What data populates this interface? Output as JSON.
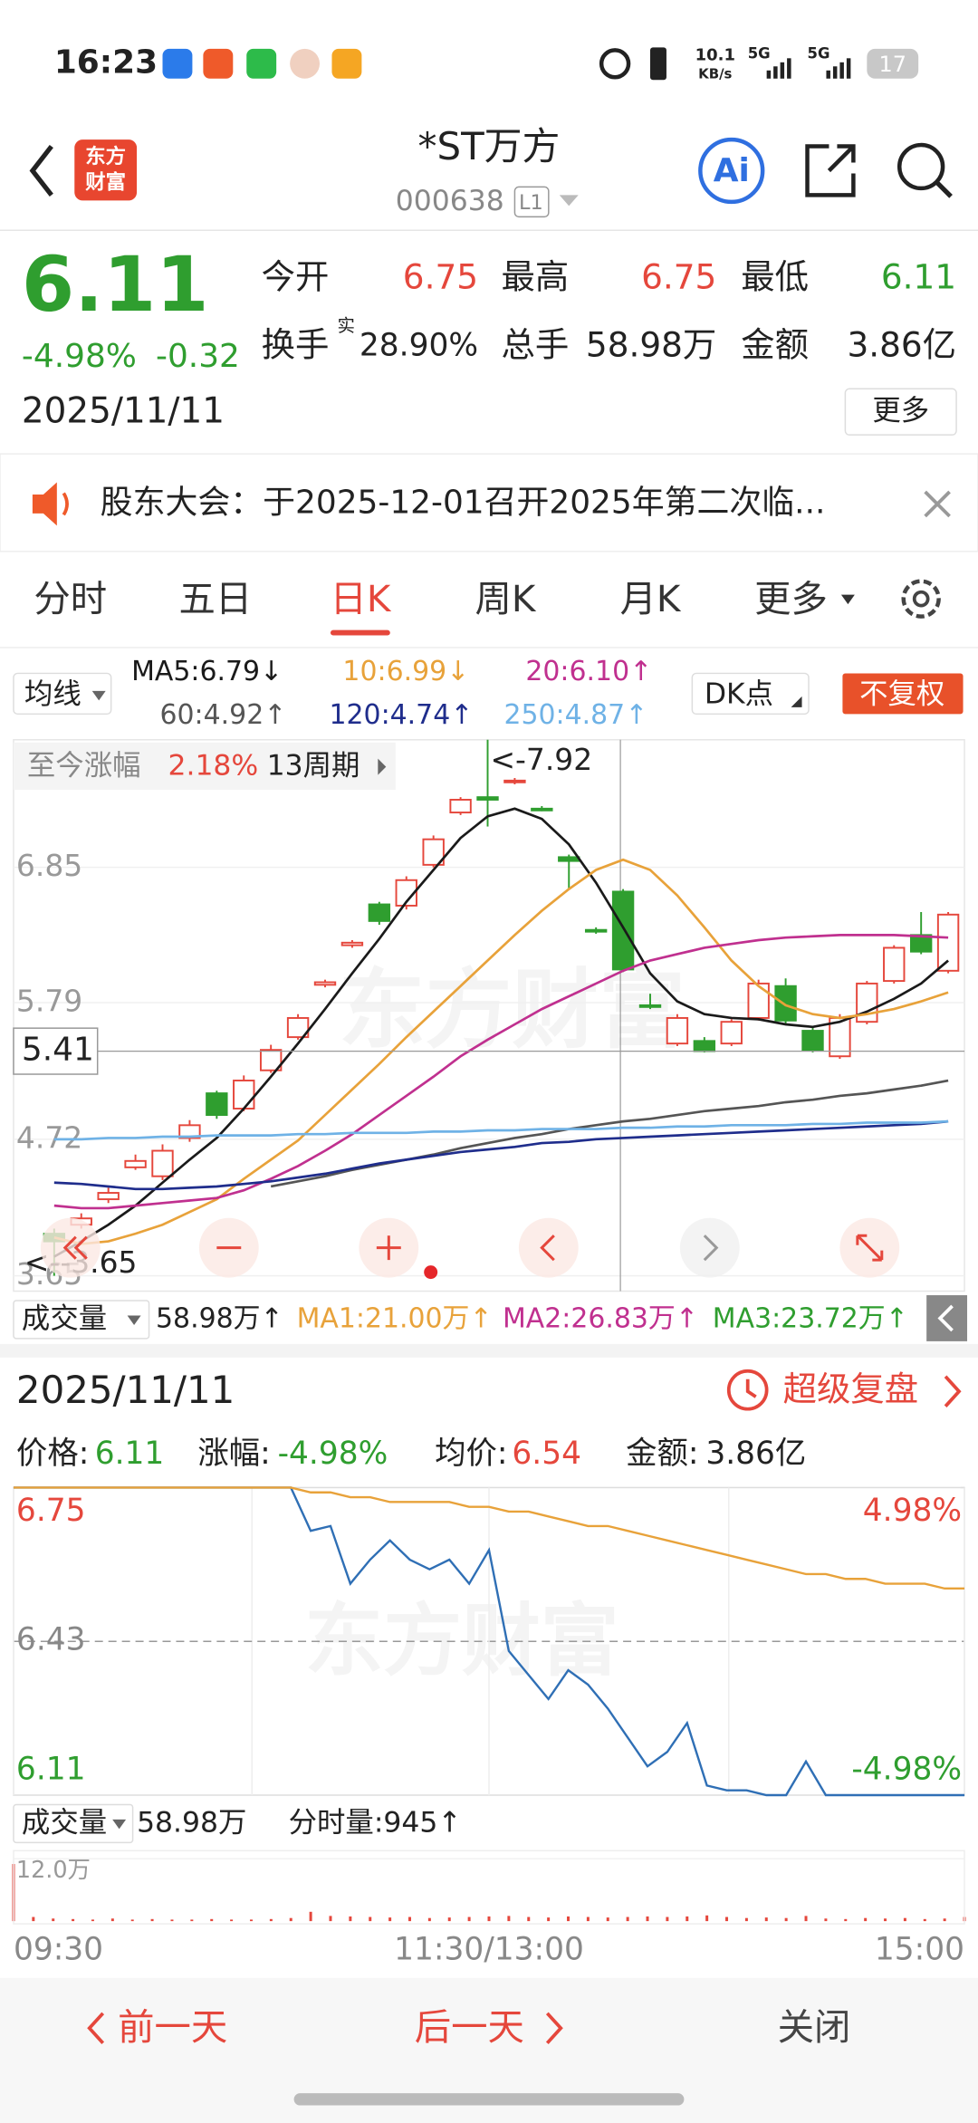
{
  "status_bar": {
    "time": "16:23",
    "net_speed": "10.1",
    "net_unit": "KB/s",
    "sig1": "5G",
    "sig2": "5G",
    "battery": "17"
  },
  "header": {
    "logo_top": "东方",
    "logo_bottom": "财富",
    "title": "*ST万方",
    "code": "000638",
    "badge": "L1",
    "ai": "Ai"
  },
  "quote": {
    "price": "6.11",
    "change_pct": "-4.98%",
    "change": "-0.32",
    "date": "2025/11/11",
    "more": "更多",
    "fields": [
      {
        "label": "今开",
        "value": "6.75"
      },
      {
        "label": "最高",
        "value": "6.75"
      },
      {
        "label": "最低",
        "value": "6.11"
      },
      {
        "label": "换手",
        "sup": "实",
        "value": "28.90%"
      },
      {
        "label": "总手",
        "value": "58.98万"
      },
      {
        "label": "金额",
        "value": "3.86亿"
      }
    ]
  },
  "notice": {
    "text": "股东大会：于2025-12-01召开2025年第二次临..."
  },
  "tabs": {
    "items": [
      "分时",
      "五日",
      "日K",
      "周K",
      "月K",
      "更多"
    ],
    "active": 2
  },
  "watermark": "东方财富",
  "chart_data": [
    {
      "type": "candlestick",
      "ma_selector": "均线",
      "dk_button": "DK点",
      "adjust_button": "不复权",
      "range_label": "至今涨幅",
      "range_value": "2.18%",
      "range_period": "13周期",
      "high_label": "<-7.92",
      "low_label": "<--3.65",
      "up_color": "#e5473c",
      "down_color": "#2f9e2f",
      "ylim": [
        3.53,
        7.85
      ],
      "yticks": [
        6.85,
        5.79,
        4.72,
        3.65
      ],
      "candles": {
        "open": [
          3.98,
          4.05,
          4.25,
          4.5,
          4.43,
          4.73,
          5.08,
          4.96,
          5.26,
          5.52,
          5.93,
          6.24,
          6.56,
          6.55,
          6.87,
          7.28,
          7.4,
          7.52,
          7.31,
          6.93,
          6.36,
          6.66,
          5.77,
          5.47,
          5.49,
          5.47,
          5.67,
          5.92,
          5.57,
          5.37,
          5.64,
          5.96,
          6.32,
          6.04
        ],
        "high": [
          4.02,
          4.14,
          4.34,
          4.6,
          4.68,
          4.87,
          5.1,
          5.22,
          5.46,
          5.7,
          5.97,
          6.28,
          6.58,
          6.78,
          7.1,
          7.4,
          7.92,
          7.55,
          7.33,
          6.95,
          6.38,
          6.68,
          5.86,
          5.7,
          5.52,
          5.66,
          5.97,
          5.98,
          5.6,
          5.7,
          5.96,
          6.24,
          6.5,
          6.5
        ],
        "low": [
          3.65,
          4.02,
          4.22,
          4.48,
          4.4,
          4.7,
          4.88,
          4.94,
          5.24,
          5.5,
          5.91,
          6.22,
          6.4,
          6.52,
          6.85,
          7.26,
          7.17,
          7.5,
          7.29,
          6.68,
          6.33,
          6.03,
          5.74,
          5.45,
          5.4,
          5.45,
          5.65,
          5.62,
          5.4,
          5.35,
          5.62,
          5.94,
          6.17,
          6.02
        ],
        "close": [
          3.92,
          4.1,
          4.3,
          4.55,
          4.63,
          4.83,
          4.91,
          5.18,
          5.42,
          5.67,
          5.95,
          6.26,
          6.43,
          6.75,
          7.07,
          7.38,
          7.38,
          7.53,
          7.3,
          6.9,
          6.35,
          6.05,
          5.76,
          5.67,
          5.41,
          5.64,
          5.94,
          5.65,
          5.42,
          5.67,
          5.94,
          6.22,
          6.19,
          6.48
        ]
      },
      "series": [
        {
          "legend": "MA5:6.79",
          "arrow": "↓",
          "color": "#1a1a1a",
          "values": [
            3.8,
            3.92,
            4.05,
            4.2,
            4.38,
            4.56,
            4.73,
            4.96,
            5.21,
            5.47,
            5.74,
            6.02,
            6.29,
            6.58,
            6.83,
            7.08,
            7.25,
            7.31,
            7.23,
            7.03,
            6.73,
            6.38,
            6.02,
            5.8,
            5.7,
            5.67,
            5.66,
            5.62,
            5.6,
            5.64,
            5.72,
            5.82,
            5.94,
            6.12
          ]
        },
        {
          "legend": "10:6.99",
          "arrow": "↓",
          "color": "#e8a23a",
          "values": [
            3.95,
            3.9,
            3.92,
            3.98,
            4.05,
            4.15,
            4.25,
            4.41,
            4.56,
            4.71,
            4.91,
            5.11,
            5.31,
            5.52,
            5.72,
            5.92,
            6.12,
            6.32,
            6.51,
            6.68,
            6.83,
            6.91,
            6.83,
            6.63,
            6.38,
            6.12,
            5.92,
            5.77,
            5.7,
            5.67,
            5.7,
            5.74,
            5.8,
            5.87
          ]
        },
        {
          "legend": "20:6.10",
          "arrow": "↑",
          "color": "#c0308f",
          "values": [
            4.2,
            4.18,
            4.18,
            4.2,
            4.22,
            4.24,
            4.26,
            4.32,
            4.41,
            4.51,
            4.63,
            4.76,
            4.91,
            5.06,
            5.21,
            5.37,
            5.5,
            5.62,
            5.74,
            5.84,
            5.94,
            6.04,
            6.12,
            6.17,
            6.22,
            6.25,
            6.28,
            6.3,
            6.31,
            6.32,
            6.32,
            6.32,
            6.31,
            6.3
          ]
        },
        {
          "legend": "60:4.92",
          "arrow": "↑",
          "color": "#555555",
          "values": [
            null,
            null,
            null,
            null,
            null,
            null,
            null,
            null,
            4.35,
            4.39,
            4.43,
            4.48,
            4.52,
            4.56,
            4.6,
            4.65,
            4.69,
            4.73,
            4.76,
            4.8,
            4.83,
            4.86,
            4.88,
            4.91,
            4.94,
            4.96,
            4.98,
            5.01,
            5.03,
            5.06,
            5.08,
            5.11,
            5.14,
            5.18
          ]
        },
        {
          "legend": "120:4.74",
          "arrow": "↑",
          "color": "#1f2d8c",
          "values": [
            4.38,
            4.37,
            4.35,
            4.33,
            4.33,
            4.34,
            4.35,
            4.37,
            4.39,
            4.42,
            4.45,
            4.49,
            4.53,
            4.56,
            4.59,
            4.62,
            4.64,
            4.66,
            4.69,
            4.7,
            4.72,
            4.73,
            4.74,
            4.75,
            4.76,
            4.77,
            4.78,
            4.79,
            4.8,
            4.81,
            4.82,
            4.83,
            4.84,
            4.86
          ]
        },
        {
          "legend": "250:4.87",
          "arrow": "↑",
          "color": "#6fb2e6",
          "values": [
            4.72,
            4.72,
            4.73,
            4.73,
            4.74,
            4.74,
            4.75,
            4.75,
            4.75,
            4.76,
            4.76,
            4.77,
            4.77,
            4.77,
            4.78,
            4.78,
            4.79,
            4.79,
            4.8,
            4.8,
            4.8,
            4.81,
            4.81,
            4.82,
            4.82,
            4.83,
            4.83,
            4.83,
            4.84,
            4.84,
            4.85,
            4.85,
            4.85,
            4.86
          ]
        }
      ],
      "crosshair": {
        "value": 5.41
      },
      "volume_legend": {
        "selector": "成交量",
        "total": "58.98万↑",
        "ma": [
          {
            "label": "MA1:21.00万↑",
            "color": "#e8a23a"
          },
          {
            "label": "MA2:26.83万↑",
            "color": "#c0308f"
          },
          {
            "label": "MA3:23.72万↑",
            "color": "#2f9e2f"
          }
        ]
      }
    },
    {
      "type": "line",
      "detail": {
        "date": "2025/11/11",
        "replay": "超级复盘",
        "items": [
          {
            "label": "价格:",
            "value": "6.11"
          },
          {
            "label": "涨幅:",
            "value": "-4.98%"
          },
          {
            "label": "均价:",
            "value": "6.54"
          },
          {
            "label": "金额:",
            "value": "3.86亿"
          }
        ]
      },
      "xlim": [
        0,
        240
      ],
      "xticks": [
        {
          "value": 0,
          "label": "09:30"
        },
        {
          "value": 120,
          "label": "11:30/13:00"
        },
        {
          "value": 240,
          "label": "15:00"
        }
      ],
      "ylim": [
        6.11,
        6.75
      ],
      "yticks": [
        6.75,
        6.43,
        6.11
      ],
      "y2lim": [
        -4.98,
        4.98
      ],
      "y2ticks": [
        {
          "value": 4.98,
          "label": "4.98%"
        },
        {
          "value": -4.98,
          "label": "-4.98%"
        }
      ],
      "x": [
        0,
        5,
        10,
        15,
        20,
        25,
        30,
        35,
        40,
        45,
        50,
        55,
        60,
        65,
        70,
        75,
        80,
        85,
        90,
        95,
        100,
        105,
        110,
        115,
        120,
        125,
        130,
        135,
        140,
        145,
        150,
        155,
        160,
        165,
        170,
        175,
        180,
        185,
        190,
        195,
        200,
        205,
        210,
        215,
        220,
        225,
        230,
        235,
        240
      ],
      "series": [
        {
          "color": "#2f6fb5",
          "values": [
            6.75,
            6.75,
            6.75,
            6.75,
            6.75,
            6.75,
            6.75,
            6.75,
            6.75,
            6.75,
            6.75,
            6.75,
            6.75,
            6.75,
            6.75,
            6.66,
            6.67,
            6.55,
            6.6,
            6.64,
            6.6,
            6.58,
            6.6,
            6.55,
            6.62,
            6.41,
            6.36,
            6.31,
            6.37,
            6.34,
            6.29,
            6.23,
            6.17,
            6.2,
            6.26,
            6.13,
            6.12,
            6.12,
            6.11,
            6.11,
            6.18,
            6.11,
            6.11,
            6.11,
            6.11,
            6.11,
            6.11,
            6.11,
            6.11
          ]
        },
        {
          "color": "#e8a23a",
          "values": [
            6.75,
            6.75,
            6.75,
            6.75,
            6.75,
            6.75,
            6.75,
            6.75,
            6.75,
            6.75,
            6.75,
            6.75,
            6.75,
            6.75,
            6.75,
            6.74,
            6.74,
            6.73,
            6.73,
            6.72,
            6.72,
            6.72,
            6.72,
            6.71,
            6.71,
            6.7,
            6.7,
            6.69,
            6.68,
            6.67,
            6.67,
            6.66,
            6.65,
            6.64,
            6.63,
            6.62,
            6.61,
            6.6,
            6.59,
            6.58,
            6.57,
            6.57,
            6.56,
            6.56,
            6.55,
            6.55,
            6.55,
            6.54,
            6.54
          ]
        }
      ],
      "volume": {
        "selector": "成交量",
        "total": "58.98万",
        "per_minute": "分时量:945↑",
        "color": "#e5473c",
        "ylim": [
          0,
          12
        ],
        "yticks": [
          {
            "value": 12,
            "label": "12.0万"
          }
        ],
        "values": [
          11.0,
          0.8,
          0.5,
          0.4,
          0.3,
          0.5,
          0.3,
          0.4,
          0.3,
          0.3,
          0.4,
          0.3,
          0.3,
          0.4,
          0.6,
          1.8,
          1.0,
          0.9,
          0.8,
          0.7,
          0.8,
          0.6,
          0.7,
          0.8,
          0.9,
          1.0,
          0.8,
          0.7,
          0.9,
          0.8,
          0.7,
          0.8,
          0.9,
          0.8,
          0.9,
          1.1,
          0.8,
          0.6,
          0.7,
          0.6,
          1.0,
          0.5,
          0.4,
          0.6,
          0.5,
          0.6,
          0.4,
          0.5,
          0.8
        ]
      }
    }
  ],
  "footer": {
    "prev": "前一天",
    "next": "后一天",
    "close": "关闭"
  }
}
